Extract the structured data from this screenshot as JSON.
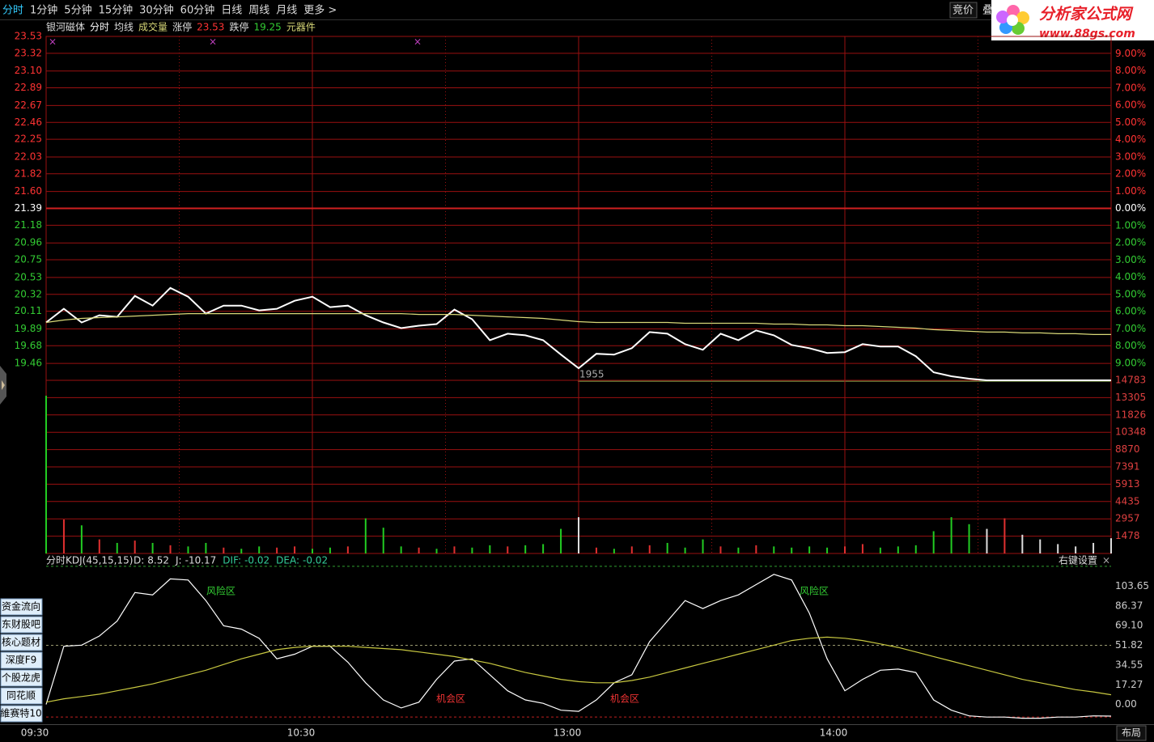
{
  "toolbar": {
    "tabs": [
      "分时",
      "1分钟",
      "5分钟",
      "15分钟",
      "30分钟",
      "60分钟",
      "日线",
      "周线",
      "月线",
      "更多 >"
    ],
    "right": [
      "竞价",
      "叠"
    ],
    "logo": {
      "title": "分析家公式网",
      "url": "www.88gs.com"
    }
  },
  "info": {
    "stock": "银河磁体",
    "limit_up_label": "涨停",
    "limit_up": 23.53,
    "limit_down_label": "跌停",
    "limit_down": 19.25,
    "sector": "元器件"
  },
  "sidebar": [
    "资金流向",
    "东财股吧",
    "核心题材",
    "深度F9",
    "个股龙虎",
    "同花顺",
    "維赛特10"
  ],
  "footer": {
    "layout_button": "布局"
  },
  "chart_data": [
    {
      "type": "line",
      "annotation": "1955",
      "x": [
        0,
        4,
        8,
        12,
        16,
        20,
        24,
        28,
        32,
        36,
        40,
        44,
        48,
        52,
        56,
        60,
        64,
        68,
        72,
        76,
        80,
        84,
        88,
        92,
        96,
        100,
        104,
        108,
        112,
        116,
        120,
        124,
        128,
        132,
        136,
        140,
        144,
        148,
        152,
        156,
        160,
        164,
        168,
        172,
        176,
        180,
        184,
        188,
        192,
        196,
        200,
        204,
        208,
        212,
        216,
        220,
        224,
        228,
        232,
        236,
        240
      ],
      "xlim": [
        0,
        240
      ],
      "ylim": [
        19.25,
        23.53
      ],
      "yticks": [
        23.53,
        23.32,
        {
          "value": 23.1,
          "label": "23.10"
        },
        22.89,
        22.67,
        22.46,
        22.25,
        22.03,
        21.82,
        {
          "value": 21.6,
          "label": "21.60"
        },
        21.39,
        21.18,
        20.96,
        20.75,
        20.53,
        20.32,
        20.11,
        19.89,
        19.68,
        19.46
      ],
      "y2lim": [
        -10,
        10
      ],
      "y2ticks": [
        {
          "value": 9,
          "label": "9.00%"
        },
        {
          "value": 8,
          "label": "8.00%"
        },
        {
          "value": 7,
          "label": "7.00%"
        },
        {
          "value": 6,
          "label": "6.00%"
        },
        {
          "value": 5,
          "label": "5.00%"
        },
        {
          "value": 4,
          "label": "4.00%"
        },
        {
          "value": 3,
          "label": "3.00%"
        },
        {
          "value": 2,
          "label": "2.00%"
        },
        {
          "value": 1,
          "label": "1.00%"
        },
        {
          "value": 0,
          "label": "0.00%"
        },
        {
          "value": -1,
          "label": "1.00%"
        },
        {
          "value": -2,
          "label": "2.00%"
        },
        {
          "value": -3,
          "label": "3.00%"
        },
        {
          "value": -4,
          "label": "4.00%"
        },
        {
          "value": -5,
          "label": "5.00%"
        },
        {
          "value": -6,
          "label": "6.00%"
        },
        {
          "value": -7,
          "label": "7.00%"
        },
        {
          "value": -8,
          "label": "8.00%"
        },
        {
          "value": -9,
          "label": "9.00%"
        }
      ],
      "series": [
        {
          "name": "分时",
          "color": "#ffffff",
          "values": [
            19.97,
            20.14,
            19.97,
            20.06,
            20.04,
            20.3,
            20.18,
            20.4,
            20.29,
            20.08,
            20.18,
            20.18,
            20.12,
            20.14,
            20.24,
            20.29,
            20.16,
            20.18,
            20.06,
            19.97,
            19.9,
            19.93,
            19.95,
            20.13,
            20.01,
            19.75,
            19.83,
            19.81,
            19.75,
            19.57,
            19.4,
            19.58,
            19.57,
            19.65,
            19.85,
            19.83,
            19.7,
            19.63,
            19.83,
            19.75,
            19.87,
            19.81,
            19.69,
            19.65,
            19.59,
            19.6,
            19.7,
            19.67,
            19.67,
            19.55,
            19.35,
            19.3,
            19.27,
            19.25,
            19.25,
            19.25,
            19.25,
            19.25,
            19.25,
            19.25,
            19.25
          ]
        },
        {
          "name": "均线",
          "color": "#d8d878",
          "values": [
            19.97,
            20.0,
            20.02,
            20.03,
            20.04,
            20.05,
            20.06,
            20.07,
            20.08,
            20.08,
            20.08,
            20.08,
            20.08,
            20.08,
            20.08,
            20.08,
            20.08,
            20.08,
            20.08,
            20.08,
            20.08,
            20.07,
            20.07,
            20.07,
            20.06,
            20.05,
            20.04,
            20.03,
            20.02,
            20.0,
            19.98,
            19.97,
            19.97,
            19.97,
            19.97,
            19.97,
            19.96,
            19.96,
            19.96,
            19.96,
            19.96,
            19.95,
            19.95,
            19.94,
            19.94,
            19.93,
            19.93,
            19.92,
            19.91,
            19.9,
            19.88,
            19.87,
            19.86,
            19.85,
            19.85,
            19.84,
            19.84,
            19.83,
            19.83,
            19.82,
            19.82
          ]
        }
      ]
    },
    {
      "type": "bar",
      "ylim": [
        0,
        14783
      ],
      "yticks": [
        1478,
        2957,
        4435,
        5913,
        7391,
        8870,
        10348,
        11826,
        13305,
        14783
      ],
      "series": [
        {
          "name": "成交量",
          "values": [
            13464,
            2900,
            2400,
            1200,
            900,
            1100,
            900,
            700,
            600,
            900,
            500,
            400,
            600,
            500,
            600,
            400,
            500,
            600,
            3000,
            2200,
            600,
            500,
            400,
            600,
            500,
            700,
            600,
            700,
            800,
            2100,
            3100,
            500,
            400,
            600,
            700,
            900,
            500,
            1200,
            600,
            500,
            700,
            600,
            500,
            600,
            500,
            600,
            800,
            500,
            600,
            700,
            1900,
            3100,
            2500,
            2100,
            3000,
            1600,
            1200,
            800,
            600,
            900,
            1300
          ],
          "colors": [
            "#22cc22",
            "#e03030",
            "#22cc22",
            "#e03030",
            "#22cc22",
            "#e03030",
            "#22cc22",
            "#e03030",
            "#22cc22",
            "#22cc22",
            "#e03030",
            "#22cc22",
            "#22cc22",
            "#e03030",
            "#e03030",
            "#22cc22",
            "#22cc22",
            "#e03030",
            "#22cc22",
            "#22cc22",
            "#22cc22",
            "#e03030",
            "#22cc22",
            "#e03030",
            "#22cc22",
            "#22cc22",
            "#e03030",
            "#22cc22",
            "#22cc22",
            "#22cc22",
            "#dddddd",
            "#e03030",
            "#22cc22",
            "#e03030",
            "#e03030",
            "#22cc22",
            "#22cc22",
            "#22cc22",
            "#e03030",
            "#22cc22",
            "#e03030",
            "#22cc22",
            "#22cc22",
            "#22cc22",
            "#22cc22",
            "#e03030",
            "#e03030",
            "#22cc22",
            "#22cc22",
            "#22cc22",
            "#22cc22",
            "#22cc22",
            "#22cc22",
            "#dddddd",
            "#e03030",
            "#dddddd",
            "#dddddd",
            "#dddddd",
            "#dddddd",
            "#dddddd",
            "#dddddd"
          ]
        }
      ]
    },
    {
      "type": "line",
      "title": "分时KDJ(45,15,15)",
      "stats": [
        {
          "label": "D:",
          "value": 8.52,
          "color": "#dddddd"
        },
        {
          "label": "J:",
          "value": -10.17,
          "color": "#dddddd"
        },
        {
          "label": "DIF:",
          "value": -0.02,
          "color": "#33cc99"
        },
        {
          "label": "DEA:",
          "value": -0.02,
          "color": "#33cc99"
        }
      ],
      "settings_label": "右键设置",
      "close_label": "×",
      "annotations": [
        "风险区",
        "风险区",
        "机会区",
        "机会区"
      ],
      "ylim": [
        -17.27,
        120.92
      ],
      "yticks": [
        {
          "value": 0,
          "label": "0.00"
        },
        17.27,
        34.55,
        51.82,
        {
          "value": 69.1,
          "label": "69.10"
        },
        86.37,
        103.65
      ],
      "ref_lines": [
        {
          "value": 121,
          "color": "#2f9f2f"
        },
        {
          "value": 51.82,
          "color": "#9a9a70"
        },
        {
          "value": -11,
          "color": "#c02020"
        }
      ],
      "xticks": [
        {
          "value": 0,
          "label": "09:30"
        },
        {
          "value": 60,
          "label": "10:30"
        },
        {
          "value": 120,
          "label": "13:00"
        },
        {
          "value": 180,
          "label": "14:00"
        }
      ],
      "series": [
        {
          "color": "#ffffff",
          "values": [
            0,
            51,
            52,
            60,
            73,
            98,
            96,
            110,
            109,
            91,
            69,
            66,
            58,
            40,
            44,
            51,
            51,
            37,
            19,
            4,
            -3,
            2,
            22,
            38,
            40,
            26,
            12,
            4,
            1,
            -5,
            -6,
            4,
            19,
            26,
            55,
            73,
            91,
            84,
            91,
            96,
            105,
            114,
            109,
            80,
            40,
            12,
            22,
            30,
            31,
            28,
            4,
            -5,
            -10,
            -11,
            -11,
            -12,
            -12,
            -11,
            -11,
            -10,
            -10.17
          ]
        },
        {
          "color": "#c8c840",
          "values": [
            2,
            5,
            7,
            9,
            12,
            15,
            18,
            22,
            26,
            30,
            35,
            40,
            44,
            48,
            50,
            51,
            51,
            51,
            50,
            49,
            48,
            46,
            44,
            42,
            39,
            36,
            32,
            28,
            25,
            22,
            20,
            19,
            19,
            21,
            24,
            28,
            32,
            36,
            40,
            44,
            48,
            52,
            56,
            58,
            59,
            58,
            56,
            53,
            50,
            46,
            42,
            38,
            34,
            30,
            26,
            22,
            19,
            16,
            13,
            11,
            8.52
          ]
        }
      ]
    }
  ]
}
